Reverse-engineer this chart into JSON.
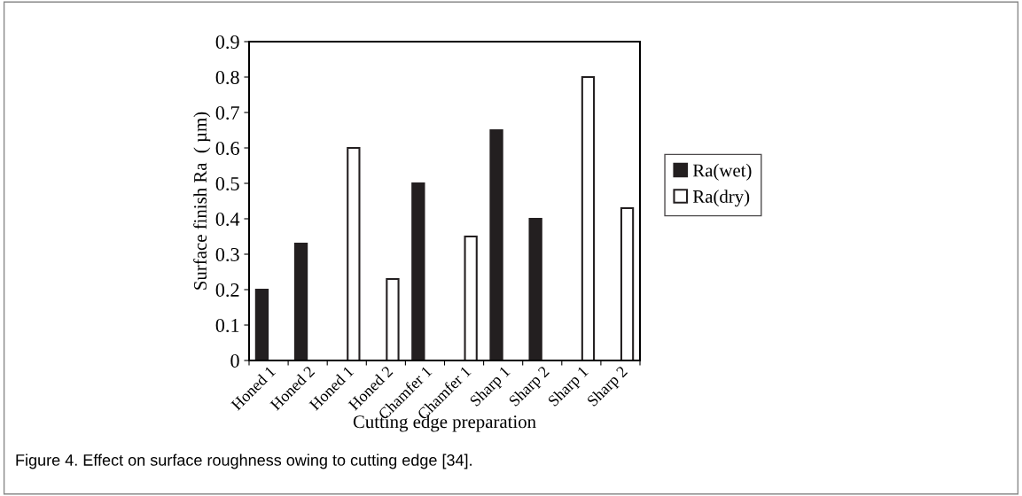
{
  "chart_data": {
    "type": "bar",
    "xlabel": "Cutting edge preparation",
    "ylabel": "Surface finish Ra  ( µm)",
    "categories": [
      "Honed 1",
      "Honed 2",
      "Honed 1",
      "Honed 2",
      "Chamfer 1",
      "Chamfer 1",
      "Sharp 1",
      "Sharp 2",
      "Sharp 1",
      "Sharp 2"
    ],
    "series": [
      {
        "name": "Ra(wet)",
        "color": "#231f20",
        "values": [
          0.2,
          0.33,
          null,
          null,
          0.5,
          null,
          0.65,
          0.4,
          null,
          null
        ]
      },
      {
        "name": "Ra(dry)",
        "color": "#ffffff",
        "values": [
          null,
          null,
          0.6,
          0.23,
          null,
          0.35,
          null,
          null,
          0.8,
          0.43
        ]
      }
    ],
    "ylim": [
      0,
      0.9
    ],
    "yticks": [
      0,
      0.1,
      0.2,
      0.3,
      0.4,
      0.5,
      0.6,
      0.7,
      0.8,
      0.9
    ],
    "grid": false,
    "legend": "right",
    "annotations": [
      "Figure 4. Effect on surface roughness owing to cutting edge [34]."
    ]
  }
}
